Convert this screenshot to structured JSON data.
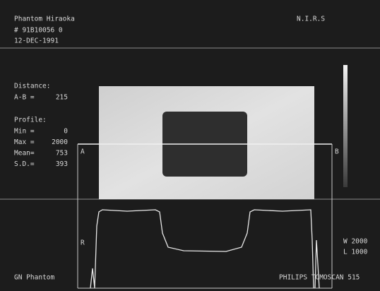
{
  "header": {
    "patient": "Phantom Hiraoka",
    "id": "# 91B10056 0",
    "date": "12-DEC-1991",
    "institution": "N.I.R.S"
  },
  "measurements": {
    "distance_label": "Distance:",
    "ab_label": "A-B =",
    "ab_value": "215",
    "profile_label": "Profile:",
    "rows": [
      {
        "label": "Min =",
        "value": "0"
      },
      {
        "label": "Max =",
        "value": "2000"
      },
      {
        "label": "Mean=",
        "value": "753"
      },
      {
        "label": "S.D.=",
        "value": "393"
      }
    ]
  },
  "markers": {
    "a": "A",
    "b": "B",
    "r": "R"
  },
  "window": {
    "width": "W 2000",
    "level": "L 1000"
  },
  "footer": {
    "left": "GN Phantom",
    "right": "PHILIPS TOMOSCAN 515"
  }
}
